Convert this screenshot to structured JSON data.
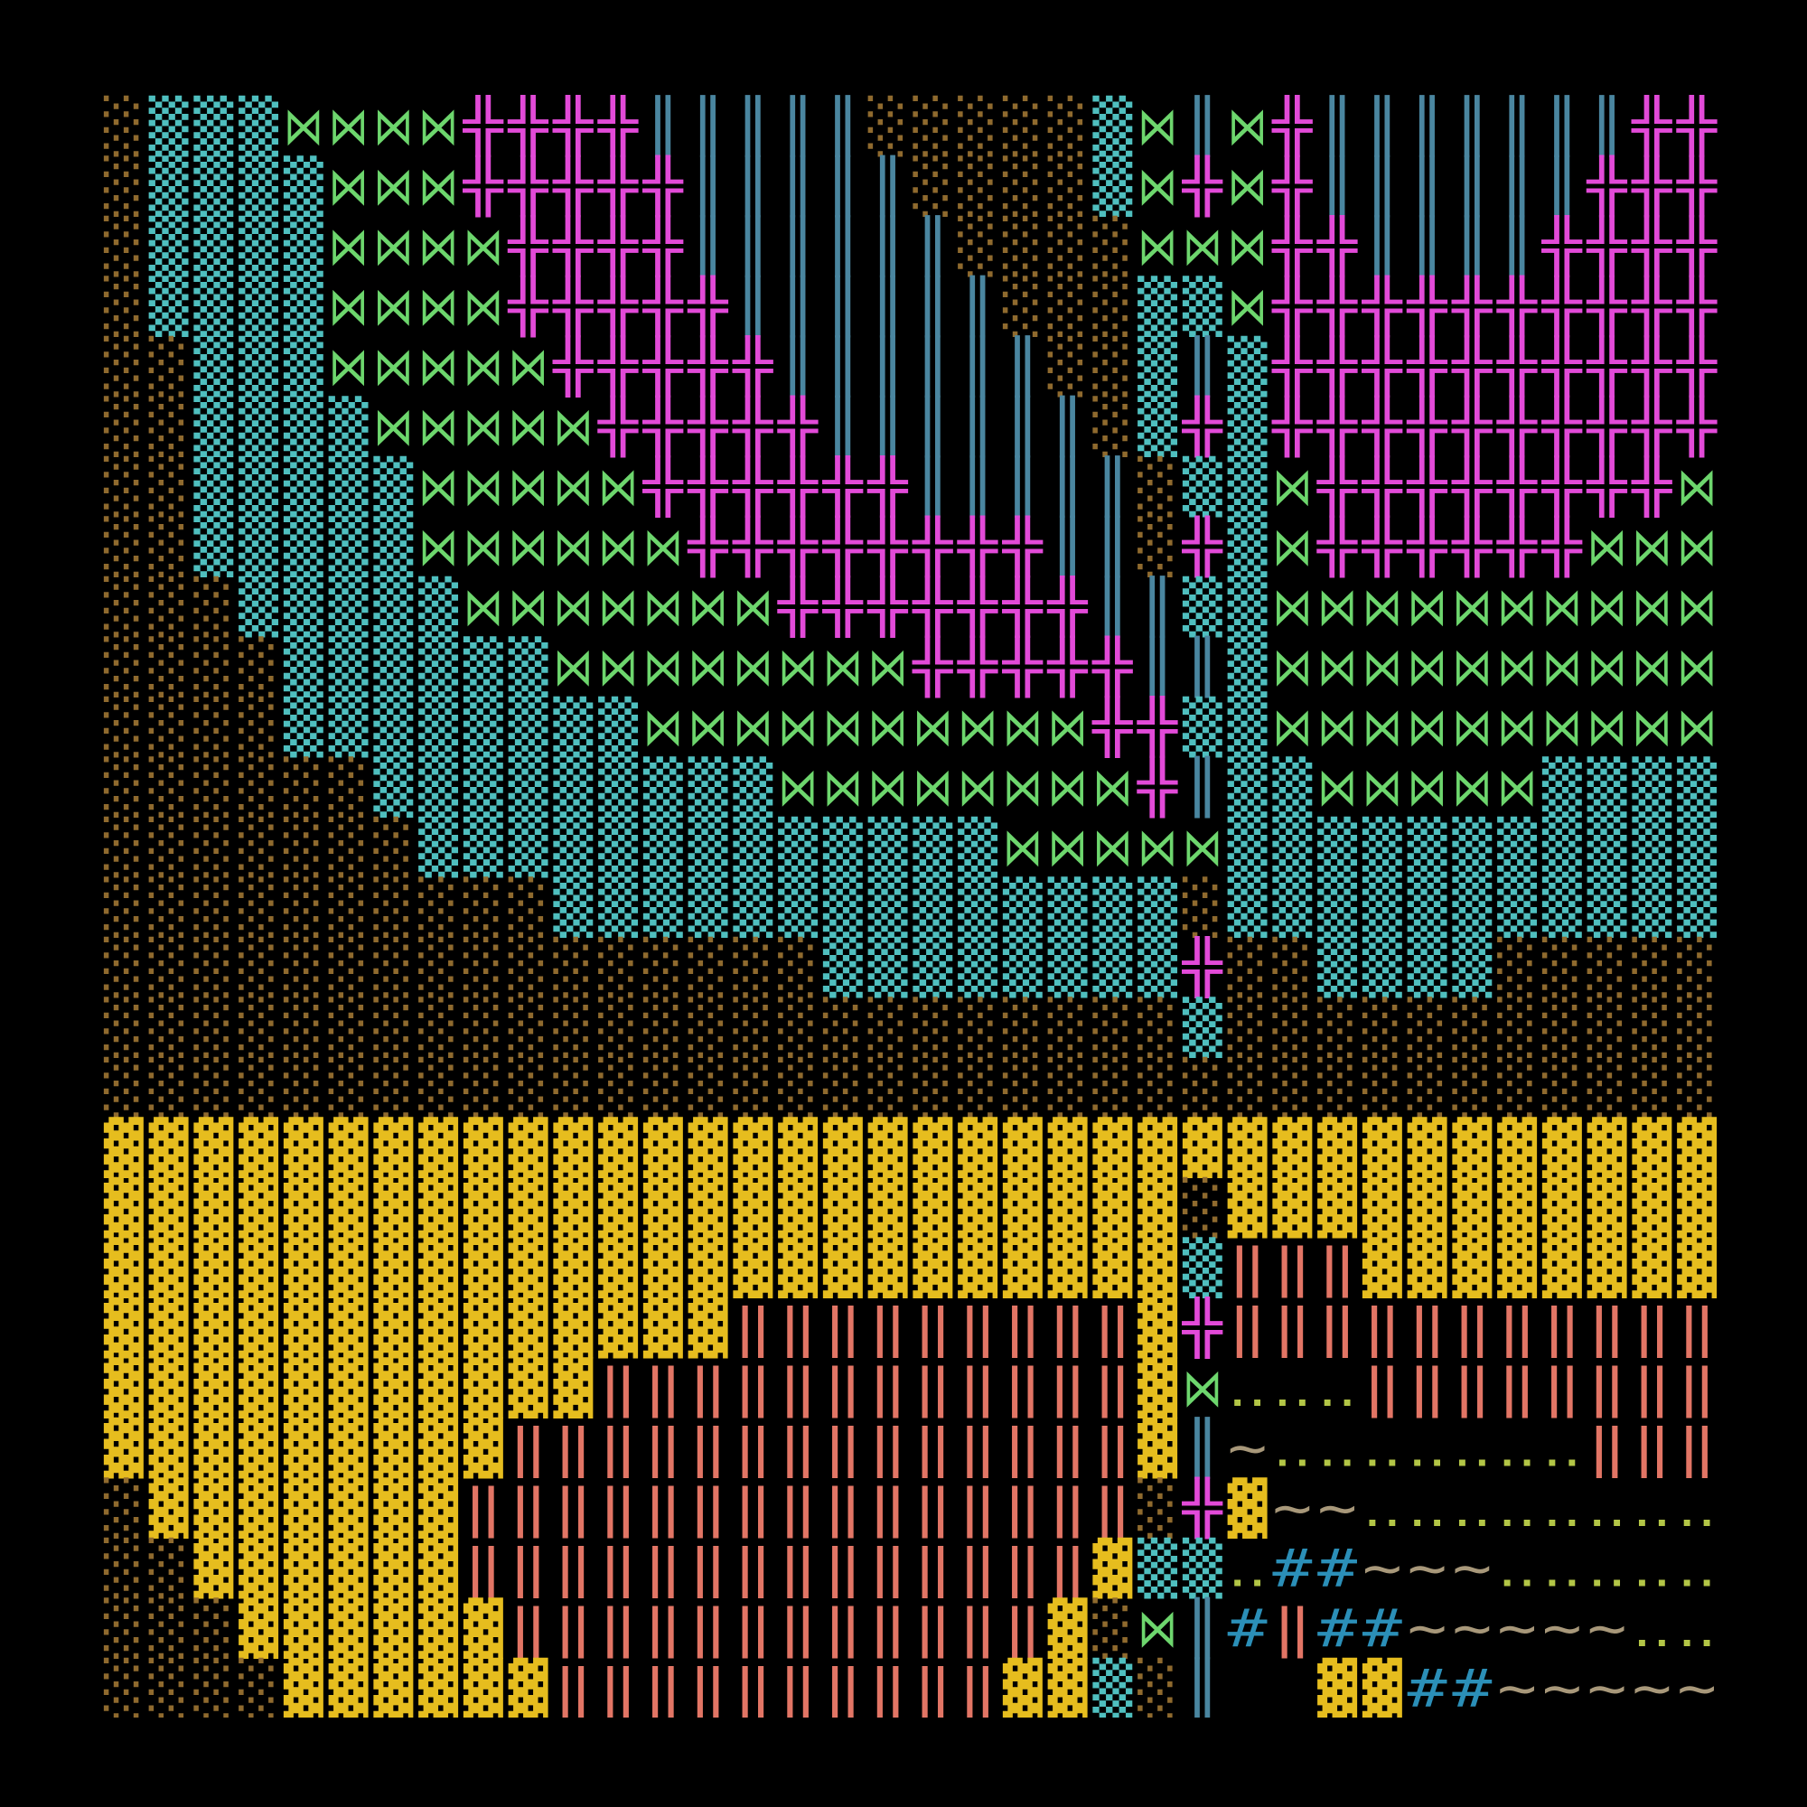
{
  "glyph_grid": {
    "palette": {
      "░": "#8f6a2e",
      "▒": "#4fbfbf",
      "▓": "#e6bd1e",
      "⋈": "#6dd66d",
      "╬": "#e24ad8",
      "║": "#4a86a0",
      "‖": "#e27565",
      "‥": "#b3c646",
      "~": "#a8987a",
      "#": "#2b8fb8"
    },
    "rows": [
      [
        "░",
        "▒",
        "▒",
        "▒",
        "⋈",
        "⋈",
        "⋈",
        "⋈",
        "╬",
        "╬",
        "╬",
        "╬",
        "║",
        "║",
        "║",
        "║",
        "║",
        "░",
        "░",
        "░",
        "░",
        "░",
        "▒",
        "⋈",
        "║",
        "⋈",
        "╬",
        "║",
        "║",
        "║",
        "║",
        "║",
        "║",
        "║",
        "╬",
        "╬"
      ],
      [
        "░",
        "▒",
        "▒",
        "▒",
        "▒",
        "⋈",
        "⋈",
        "⋈",
        "╬",
        "╬",
        "╬",
        "╬",
        "╬",
        "║",
        "║",
        "║",
        "║",
        "║",
        "░",
        "░",
        "░",
        "░",
        "▒",
        "⋈",
        "╬",
        "⋈",
        "╬",
        "║",
        "║",
        "║",
        "║",
        "║",
        "║",
        "╬",
        "╬",
        "╬"
      ],
      [
        "░",
        "▒",
        "▒",
        "▒",
        "▒",
        "⋈",
        "⋈",
        "⋈",
        "⋈",
        "╬",
        "╬",
        "╬",
        "╬",
        "║",
        "║",
        "║",
        "║",
        "║",
        "║",
        "░",
        "░",
        "░",
        "░",
        "⋈",
        "⋈",
        "⋈",
        "╬",
        "╬",
        "║",
        "║",
        "║",
        "║",
        "╬",
        "╬",
        "╬",
        "╬"
      ],
      [
        "░",
        "▒",
        "▒",
        "▒",
        "▒",
        "⋈",
        "⋈",
        "⋈",
        "⋈",
        "╬",
        "╬",
        "╬",
        "╬",
        "╬",
        "║",
        "║",
        "║",
        "║",
        "║",
        "║",
        "░",
        "░",
        "░",
        "▒",
        "▒",
        "⋈",
        "╬",
        "╬",
        "╬",
        "╬",
        "╬",
        "╬",
        "╬",
        "╬",
        "╬",
        "╬"
      ],
      [
        "░",
        "░",
        "▒",
        "▒",
        "▒",
        "⋈",
        "⋈",
        "⋈",
        "⋈",
        "⋈",
        "╬",
        "╬",
        "╬",
        "╬",
        "╬",
        "║",
        "║",
        "║",
        "║",
        "║",
        "║",
        "░",
        "░",
        "▒",
        "║",
        "▒",
        "╬",
        "╬",
        "╬",
        "╬",
        "╬",
        "╬",
        "╬",
        "╬",
        "╬",
        "╬"
      ],
      [
        "░",
        "░",
        "▒",
        "▒",
        "▒",
        "▒",
        "⋈",
        "⋈",
        "⋈",
        "⋈",
        "⋈",
        "╬",
        "╬",
        "╬",
        "╬",
        "╬",
        "║",
        "║",
        "║",
        "║",
        "║",
        "║",
        "░",
        "▒",
        "╬",
        "▒",
        "╬",
        "╬",
        "╬",
        "╬",
        "╬",
        "╬",
        "╬",
        "╬",
        "╬",
        "╬"
      ],
      [
        "░",
        "░",
        "▒",
        "▒",
        "▒",
        "▒",
        "▒",
        "⋈",
        "⋈",
        "⋈",
        "⋈",
        "⋈",
        "╬",
        "╬",
        "╬",
        "╬",
        "╬",
        "╬",
        "║",
        "║",
        "║",
        "║",
        "║",
        "░",
        "▒",
        "▒",
        "⋈",
        "╬",
        "╬",
        "╬",
        "╬",
        "╬",
        "╬",
        "╬",
        "╬",
        "⋈"
      ],
      [
        "░",
        "░",
        "▒",
        "▒",
        "▒",
        "▒",
        "▒",
        "⋈",
        "⋈",
        "⋈",
        "⋈",
        "⋈",
        "⋈",
        "╬",
        "╬",
        "╬",
        "╬",
        "╬",
        "╬",
        "╬",
        "╬",
        "║",
        "║",
        "░",
        "╬",
        "▒",
        "⋈",
        "╬",
        "╬",
        "╬",
        "╬",
        "╬",
        "╬",
        "⋈",
        "⋈",
        "⋈"
      ],
      [
        "░",
        "░",
        "░",
        "▒",
        "▒",
        "▒",
        "▒",
        "▒",
        "⋈",
        "⋈",
        "⋈",
        "⋈",
        "⋈",
        "⋈",
        "⋈",
        "╬",
        "╬",
        "╬",
        "╬",
        "╬",
        "╬",
        "╬",
        "║",
        "║",
        "▒",
        "▒",
        "⋈",
        "⋈",
        "⋈",
        "⋈",
        "⋈",
        "⋈",
        "⋈",
        "⋈",
        "⋈",
        "⋈"
      ],
      [
        "░",
        "░",
        "░",
        "░",
        "▒",
        "▒",
        "▒",
        "▒",
        "▒",
        "▒",
        "⋈",
        "⋈",
        "⋈",
        "⋈",
        "⋈",
        "⋈",
        "⋈",
        "⋈",
        "╬",
        "╬",
        "╬",
        "╬",
        "╬",
        "║",
        "║",
        "▒",
        "⋈",
        "⋈",
        "⋈",
        "⋈",
        "⋈",
        "⋈",
        "⋈",
        "⋈",
        "⋈",
        "⋈"
      ],
      [
        "░",
        "░",
        "░",
        "░",
        "▒",
        "▒",
        "▒",
        "▒",
        "▒",
        "▒",
        "▒",
        "▒",
        "⋈",
        "⋈",
        "⋈",
        "⋈",
        "⋈",
        "⋈",
        "⋈",
        "⋈",
        "⋈",
        "⋈",
        "╬",
        "╬",
        "▒",
        "▒",
        "⋈",
        "⋈",
        "⋈",
        "⋈",
        "⋈",
        "⋈",
        "⋈",
        "⋈",
        "⋈",
        "⋈"
      ],
      [
        "░",
        "░",
        "░",
        "░",
        "░",
        "░",
        "▒",
        "▒",
        "▒",
        "▒",
        "▒",
        "▒",
        "▒",
        "▒",
        "▒",
        "⋈",
        "⋈",
        "⋈",
        "⋈",
        "⋈",
        "⋈",
        "⋈",
        "⋈",
        "╬",
        "║",
        "▒",
        "▒",
        "⋈",
        "⋈",
        "⋈",
        "⋈",
        "⋈",
        "▒",
        "▒",
        "▒",
        "▒"
      ],
      [
        "░",
        "░",
        "░",
        "░",
        "░",
        "░",
        "░",
        "▒",
        "▒",
        "▒",
        "▒",
        "▒",
        "▒",
        "▒",
        "▒",
        "▒",
        "▒",
        "▒",
        "▒",
        "▒",
        "⋈",
        "⋈",
        "⋈",
        "⋈",
        "⋈",
        "▒",
        "▒",
        "▒",
        "▒",
        "▒",
        "▒",
        "▒",
        "▒",
        "▒",
        "▒",
        "▒"
      ],
      [
        "░",
        "░",
        "░",
        "░",
        "░",
        "░",
        "░",
        "░",
        "░",
        "░",
        "▒",
        "▒",
        "▒",
        "▒",
        "▒",
        "▒",
        "▒",
        "▒",
        "▒",
        "▒",
        "▒",
        "▒",
        "▒",
        "▒",
        "░",
        "▒",
        "▒",
        "▒",
        "▒",
        "▒",
        "▒",
        "▒",
        "▒",
        "▒",
        "▒",
        "▒"
      ],
      [
        "░",
        "░",
        "░",
        "░",
        "░",
        "░",
        "░",
        "░",
        "░",
        "░",
        "░",
        "░",
        "░",
        "░",
        "░",
        "░",
        "▒",
        "▒",
        "▒",
        "▒",
        "▒",
        "▒",
        "▒",
        "▒",
        "╬",
        "░",
        "░",
        "▒",
        "▒",
        "▒",
        "▒",
        "░",
        "░",
        "░",
        "░",
        "░"
      ],
      [
        "░",
        "░",
        "░",
        "░",
        "░",
        "░",
        "░",
        "░",
        "░",
        "░",
        "░",
        "░",
        "░",
        "░",
        "░",
        "░",
        "░",
        "░",
        "░",
        "░",
        "░",
        "░",
        "░",
        "░",
        "▒",
        "░",
        "░",
        "░",
        "░",
        "░",
        "░",
        "░",
        "░",
        "░",
        "░",
        "░"
      ],
      [
        "░",
        "░",
        "░",
        "░",
        "░",
        "░",
        "░",
        "░",
        "░",
        "░",
        "░",
        "░",
        "░",
        "░",
        "░",
        "░",
        "░",
        "░",
        "░",
        "░",
        "░",
        "░",
        "░",
        "░",
        "░",
        "░",
        "░",
        "░",
        "░",
        "░",
        "░",
        "░",
        "░",
        "░",
        "░",
        "░"
      ],
      [
        "▓",
        "▓",
        "▓",
        "▓",
        "▓",
        "▓",
        "▓",
        "▓",
        "▓",
        "▓",
        "▓",
        "▓",
        "▓",
        "▓",
        "▓",
        "▓",
        "▓",
        "▓",
        "▓",
        "▓",
        "▓",
        "▓",
        "▓",
        "▓",
        "▓",
        "▓",
        "▓",
        "▓",
        "▓",
        "▓",
        "▓",
        "▓",
        "▓",
        "▓",
        "▓",
        "▓"
      ],
      [
        "▓",
        "▓",
        "▓",
        "▓",
        "▓",
        "▓",
        "▓",
        "▓",
        "▓",
        "▓",
        "▓",
        "▓",
        "▓",
        "▓",
        "▓",
        "▓",
        "▓",
        "▓",
        "▓",
        "▓",
        "▓",
        "▓",
        "▓",
        "▓",
        "░",
        "▓",
        "▓",
        "▓",
        "▓",
        "▓",
        "▓",
        "▓",
        "▓",
        "▓",
        "▓",
        "▓"
      ],
      [
        "▓",
        "▓",
        "▓",
        "▓",
        "▓",
        "▓",
        "▓",
        "▓",
        "▓",
        "▓",
        "▓",
        "▓",
        "▓",
        "▓",
        "▓",
        "▓",
        "▓",
        "▓",
        "▓",
        "▓",
        "▓",
        "▓",
        "▓",
        "▓",
        "▒",
        "‖",
        "‖",
        "‖",
        "▓",
        "▓",
        "▓",
        "▓",
        "▓",
        "▓",
        "▓",
        "▓"
      ],
      [
        "▓",
        "▓",
        "▓",
        "▓",
        "▓",
        "▓",
        "▓",
        "▓",
        "▓",
        "▓",
        "▓",
        "▓",
        "▓",
        "▓",
        "‖",
        "‖",
        "‖",
        "‖",
        "‖",
        "‖",
        "‖",
        "‖",
        "‖",
        "▓",
        "╬",
        "‖",
        "‖",
        "‖",
        "‖",
        "‖",
        "‖",
        "‖",
        "‖",
        "‖",
        "‖",
        "‖"
      ],
      [
        "▓",
        "▓",
        "▓",
        "▓",
        "▓",
        "▓",
        "▓",
        "▓",
        "▓",
        "▓",
        "▓",
        "‖",
        "‖",
        "‖",
        "‖",
        "‖",
        "‖",
        "‖",
        "‖",
        "‖",
        "‖",
        "‖",
        "‖",
        "▓",
        "⋈",
        "‥",
        "‥",
        "‥",
        "‖",
        "‖",
        "‖",
        "‖",
        "‖",
        "‖",
        "‖",
        "‖"
      ],
      [
        "▓",
        "▓",
        "▓",
        "▓",
        "▓",
        "▓",
        "▓",
        "▓",
        "▓",
        "‖",
        "‖",
        "‖",
        "‖",
        "‖",
        "‖",
        "‖",
        "‖",
        "‖",
        "‖",
        "‖",
        "‖",
        "‖",
        "‖",
        "▓",
        "║",
        "~",
        "‥",
        "‥",
        "‥",
        "‥",
        "‥",
        "‥",
        "‥",
        "‖",
        "‖",
        "‖"
      ],
      [
        "░",
        "▓",
        "▓",
        "▓",
        "▓",
        "▓",
        "▓",
        "▓",
        "‖",
        "‖",
        "‖",
        "‖",
        "‖",
        "‖",
        "‖",
        "‖",
        "‖",
        "‖",
        "‖",
        "‖",
        "‖",
        "‖",
        "‖",
        "░",
        "╬",
        "▓",
        "~",
        "~",
        "‥",
        "‥",
        "‥",
        "‥",
        "‥",
        "‥",
        "‥",
        "‥"
      ],
      [
        "░",
        "░",
        "▓",
        "▓",
        "▓",
        "▓",
        "▓",
        "▓",
        "‖",
        "‖",
        "‖",
        "‖",
        "‖",
        "‖",
        "‖",
        "‖",
        "‖",
        "‖",
        "‖",
        "‖",
        "‖",
        "‖",
        "▓",
        "▒",
        "▒",
        "‥",
        "#",
        "#",
        "~",
        "~",
        "~",
        "‥",
        "‥",
        "‥",
        "‥",
        "‥"
      ],
      [
        "░",
        "░",
        "░",
        "▓",
        "▓",
        "▓",
        "▓",
        "▓",
        "▓",
        "‖",
        "‖",
        "‖",
        "‖",
        "‖",
        "‖",
        "‖",
        "‖",
        "‖",
        "‖",
        "‖",
        "‖",
        "▓",
        "░",
        "⋈",
        "║",
        "#",
        "‖",
        "#",
        "#",
        "~",
        "~",
        "~",
        "~",
        "~",
        "‥",
        "‥"
      ],
      [
        "░",
        "░",
        "░",
        "░",
        "▓",
        "▓",
        "▓",
        "▓",
        "▓",
        "▓",
        "‖",
        "‖",
        "‖",
        "‖",
        "‖",
        "‖",
        "‖",
        "‖",
        "‖",
        "‖",
        "▓",
        "▓",
        "▒",
        "░",
        "║",
        null,
        null,
        "▓",
        "▓",
        "#",
        "#",
        "~",
        "~",
        "~",
        "~",
        "~"
      ]
    ]
  }
}
